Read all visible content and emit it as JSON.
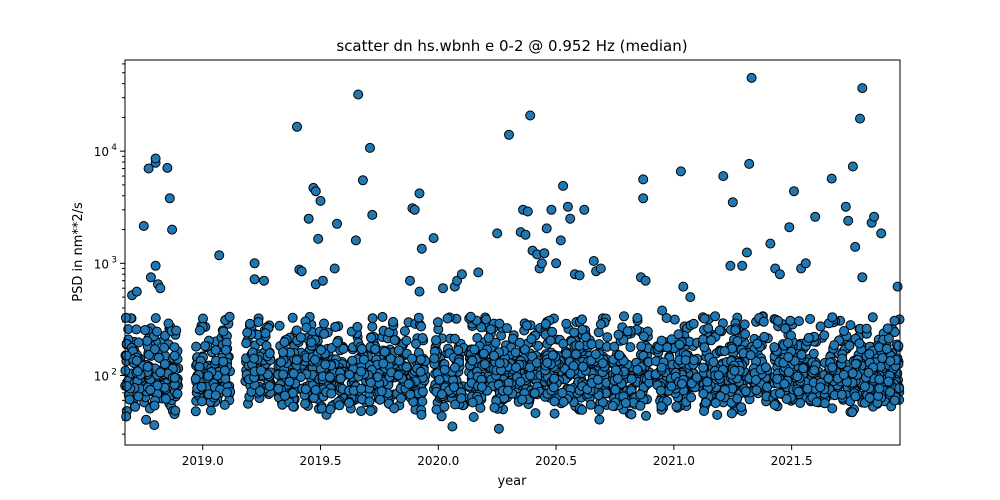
{
  "chart_data": {
    "type": "scatter",
    "title": "scatter dn hs.wbnh e 0-2 @ 0.952 Hz (median)",
    "xlabel": "year",
    "ylabel": "PSD in nm**2/s",
    "xlim": [
      2018.67,
      2021.96
    ],
    "ylim": [
      24,
      65000
    ],
    "yscale": "log",
    "grid": false,
    "marker_color": "#1f77b4",
    "marker_edge_color": "#000000",
    "x_ticks": [
      {
        "value": 2019.0,
        "label": "2019.0"
      },
      {
        "value": 2019.5,
        "label": "2019.5"
      },
      {
        "value": 2020.0,
        "label": "2020.0"
      },
      {
        "value": 2020.5,
        "label": "2020.5"
      },
      {
        "value": 2021.0,
        "label": "2021.0"
      },
      {
        "value": 2021.5,
        "label": "2021.5"
      }
    ],
    "y_ticks": [
      {
        "value": 100,
        "label_base": "10",
        "label_exp": "2"
      },
      {
        "value": 1000,
        "label_base": "10",
        "label_exp": "3"
      },
      {
        "value": 10000,
        "label_base": "10",
        "label_exp": "4"
      }
    ],
    "clusters": [
      [
        2018.67,
        2018.9
      ],
      [
        2018.97,
        2019.12
      ],
      [
        2019.18,
        2019.29
      ],
      [
        2019.32,
        2019.6
      ],
      [
        2019.62,
        2019.95
      ],
      [
        2019.98,
        2020.11
      ],
      [
        2020.13,
        2020.44
      ],
      [
        2020.45,
        2020.72
      ],
      [
        2020.74,
        2020.9
      ],
      [
        2020.92,
        2021.1
      ],
      [
        2021.12,
        2021.4
      ],
      [
        2021.42,
        2021.96
      ]
    ],
    "outliers": [
      [
        2018.7,
        520
      ],
      [
        2018.72,
        560
      ],
      [
        2018.75,
        2150
      ],
      [
        2018.77,
        7000
      ],
      [
        2018.78,
        750
      ],
      [
        2018.8,
        7900
      ],
      [
        2018.8,
        8600
      ],
      [
        2018.81,
        650
      ],
      [
        2018.82,
        600
      ],
      [
        2018.85,
        7100
      ],
      [
        2018.86,
        3800
      ],
      [
        2018.87,
        2000
      ],
      [
        2018.8,
        950
      ],
      [
        2019.07,
        1180
      ],
      [
        2019.22,
        1000
      ],
      [
        2019.22,
        720
      ],
      [
        2019.26,
        700
      ],
      [
        2019.4,
        16500
      ],
      [
        2019.41,
        880
      ],
      [
        2019.42,
        850
      ],
      [
        2019.45,
        2500
      ],
      [
        2019.47,
        4700
      ],
      [
        2019.48,
        4400
      ],
      [
        2019.5,
        3600
      ],
      [
        2019.49,
        1650
      ],
      [
        2019.48,
        650
      ],
      [
        2019.51,
        700
      ],
      [
        2019.57,
        2250
      ],
      [
        2019.56,
        900
      ],
      [
        2019.66,
        32000
      ],
      [
        2019.65,
        1600
      ],
      [
        2019.68,
        5500
      ],
      [
        2019.71,
        10700
      ],
      [
        2019.72,
        2700
      ],
      [
        2019.89,
        3100
      ],
      [
        2019.9,
        3000
      ],
      [
        2019.92,
        4200
      ],
      [
        2019.93,
        1350
      ],
      [
        2019.88,
        700
      ],
      [
        2019.92,
        560
      ],
      [
        2019.98,
        1680
      ],
      [
        2020.02,
        600
      ],
      [
        2020.07,
        620
      ],
      [
        2020.08,
        700
      ],
      [
        2020.1,
        800
      ],
      [
        2020.25,
        1850
      ],
      [
        2020.17,
        830
      ],
      [
        2020.3,
        14000
      ],
      [
        2020.36,
        3000
      ],
      [
        2020.38,
        2900
      ],
      [
        2020.39,
        20800
      ],
      [
        2020.35,
        1900
      ],
      [
        2020.37,
        1800
      ],
      [
        2020.4,
        1300
      ],
      [
        2020.42,
        1200
      ],
      [
        2020.43,
        900
      ],
      [
        2020.44,
        1000
      ],
      [
        2020.45,
        1230
      ],
      [
        2020.46,
        2050
      ],
      [
        2020.48,
        3000
      ],
      [
        2020.5,
        1000
      ],
      [
        2020.52,
        1600
      ],
      [
        2020.53,
        4900
      ],
      [
        2020.55,
        3200
      ],
      [
        2020.56,
        2500
      ],
      [
        2020.58,
        800
      ],
      [
        2020.6,
        780
      ],
      [
        2020.62,
        3000
      ],
      [
        2020.66,
        1050
      ],
      [
        2020.67,
        850
      ],
      [
        2020.69,
        900
      ],
      [
        2020.86,
        750
      ],
      [
        2020.87,
        5600
      ],
      [
        2020.87,
        3800
      ],
      [
        2020.88,
        700
      ],
      [
        2020.95,
        380
      ],
      [
        2021.03,
        6600
      ],
      [
        2021.04,
        620
      ],
      [
        2021.07,
        500
      ],
      [
        2021.21,
        6000
      ],
      [
        2021.25,
        3500
      ],
      [
        2021.24,
        950
      ],
      [
        2021.29,
        950
      ],
      [
        2021.31,
        1250
      ],
      [
        2021.33,
        45000
      ],
      [
        2021.32,
        7700
      ],
      [
        2021.41,
        1500
      ],
      [
        2021.43,
        900
      ],
      [
        2021.45,
        800
      ],
      [
        2021.49,
        2100
      ],
      [
        2021.51,
        4400
      ],
      [
        2021.54,
        900
      ],
      [
        2021.56,
        1000
      ],
      [
        2021.6,
        2600
      ],
      [
        2021.67,
        5700
      ],
      [
        2021.73,
        3200
      ],
      [
        2021.74,
        2400
      ],
      [
        2021.76,
        7300
      ],
      [
        2021.77,
        1400
      ],
      [
        2021.79,
        19500
      ],
      [
        2021.8,
        36500
      ],
      [
        2021.8,
        750
      ],
      [
        2021.84,
        2300
      ],
      [
        2021.85,
        2600
      ],
      [
        2021.88,
        1850
      ],
      [
        2021.95,
        620
      ]
    ]
  }
}
